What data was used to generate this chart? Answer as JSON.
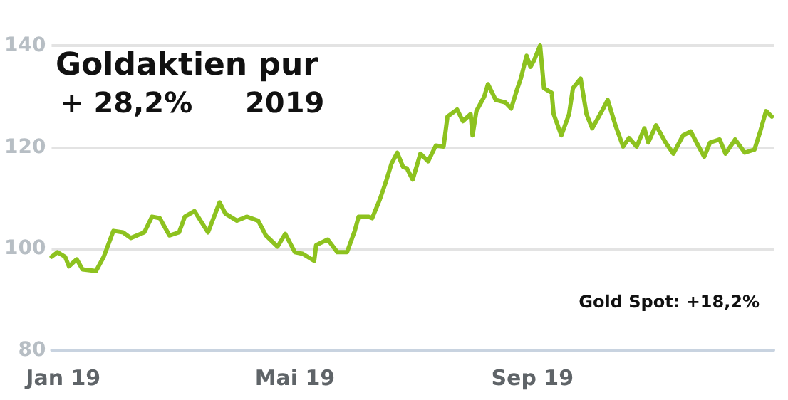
{
  "chart_data": {
    "type": "line",
    "title": "Goldaktien pur",
    "annotations": [
      "+ 28,2%",
      "2019",
      "Gold Spot: +18,2%"
    ],
    "x": [
      "2018-12-26",
      "2018-12-29",
      "2019-01-02",
      "2019-01-04",
      "2019-01-08",
      "2019-01-11",
      "2019-01-18",
      "2019-01-22",
      "2019-01-27",
      "2019-02-01",
      "2019-02-05",
      "2019-02-12",
      "2019-02-16",
      "2019-02-20",
      "2019-02-25",
      "2019-03-02",
      "2019-03-05",
      "2019-03-10",
      "2019-03-17",
      "2019-03-23",
      "2019-03-26",
      "2019-04-01",
      "2019-04-06",
      "2019-04-12",
      "2019-04-16",
      "2019-04-22",
      "2019-04-26",
      "2019-05-01",
      "2019-05-05",
      "2019-05-11",
      "2019-05-12",
      "2019-05-18",
      "2019-05-23",
      "2019-05-28",
      "2019-06-01",
      "2019-06-03",
      "2019-06-08",
      "2019-06-10",
      "2019-06-14",
      "2019-06-17",
      "2019-06-20",
      "2019-06-23",
      "2019-06-26",
      "2019-06-28",
      "2019-07-01",
      "2019-07-05",
      "2019-07-09",
      "2019-07-13",
      "2019-07-17",
      "2019-07-19",
      "2019-07-24",
      "2019-07-27",
      "2019-07-31",
      "2019-08-01",
      "2019-08-03",
      "2019-08-07",
      "2019-08-09",
      "2019-08-13",
      "2019-08-18",
      "2019-08-21",
      "2019-08-24",
      "2019-08-26",
      "2019-08-29",
      "2019-08-31",
      "2019-09-02",
      "2019-09-05",
      "2019-09-07",
      "2019-09-11",
      "2019-09-12",
      "2019-09-16",
      "2019-09-20",
      "2019-09-22",
      "2019-09-26",
      "2019-09-29",
      "2019-10-02",
      "2019-10-07",
      "2019-10-10",
      "2019-10-14",
      "2019-10-18",
      "2019-10-21",
      "2019-10-25",
      "2019-10-29",
      "2019-10-31",
      "2019-11-04",
      "2019-11-09",
      "2019-11-13",
      "2019-11-18",
      "2019-11-22",
      "2019-11-25",
      "2019-11-29",
      "2019-12-02",
      "2019-12-07",
      "2019-12-10",
      "2019-12-15",
      "2019-12-20",
      "2019-12-25",
      "2019-12-28",
      "2019-12-31",
      "2020-01-03"
    ],
    "series": [
      {
        "color": "#8dc21f",
        "values": [
          98.4,
          99.3,
          98.4,
          96.5,
          97.9,
          95.9,
          95.6,
          98.4,
          103.5,
          103.2,
          102.1,
          103.2,
          106.3,
          106,
          102.6,
          103.2,
          106.3,
          107.4,
          103.2,
          109.1,
          106.9,
          105.5,
          106.3,
          105.5,
          102.6,
          100.4,
          102.9,
          99.3,
          99,
          97.6,
          100.7,
          101.8,
          99.3,
          99.3,
          103.5,
          106.3,
          106.3,
          106,
          109.7,
          113,
          116.7,
          118.9,
          116.1,
          115.8,
          113.6,
          118.7,
          117.2,
          120.3,
          120.1,
          126,
          127.4,
          125.1,
          126.5,
          122.3,
          127.1,
          129.9,
          132.4,
          129.3,
          128.8,
          127.6,
          131.3,
          133.5,
          138,
          135.8,
          137.2,
          140,
          131.6,
          130.7,
          126.5,
          122.3,
          126.5,
          131.6,
          133.5,
          126.5,
          123.7,
          127.1,
          129.3,
          124.3,
          120.1,
          121.8,
          120.1,
          123.7,
          120.9,
          124.3,
          120.9,
          118.7,
          122.3,
          123.1,
          120.9,
          118.1,
          120.9,
          121.5,
          118.7,
          121.5,
          118.9,
          119.5,
          123.1,
          127.1,
          126
        ]
      }
    ],
    "xlim": [
      "2018-12-26",
      "2020-01-04"
    ],
    "xticks": [
      {
        "value": "2019-01-01",
        "label": "Jan 19"
      },
      {
        "value": "2019-05-01",
        "label": "Mai 19"
      },
      {
        "value": "2019-09-01",
        "label": "Sep 19"
      }
    ],
    "ylim": [
      80,
      140
    ],
    "yticks": [
      80,
      100,
      120,
      140
    ],
    "grid": "y",
    "marker": "none",
    "line_style": "solid"
  }
}
